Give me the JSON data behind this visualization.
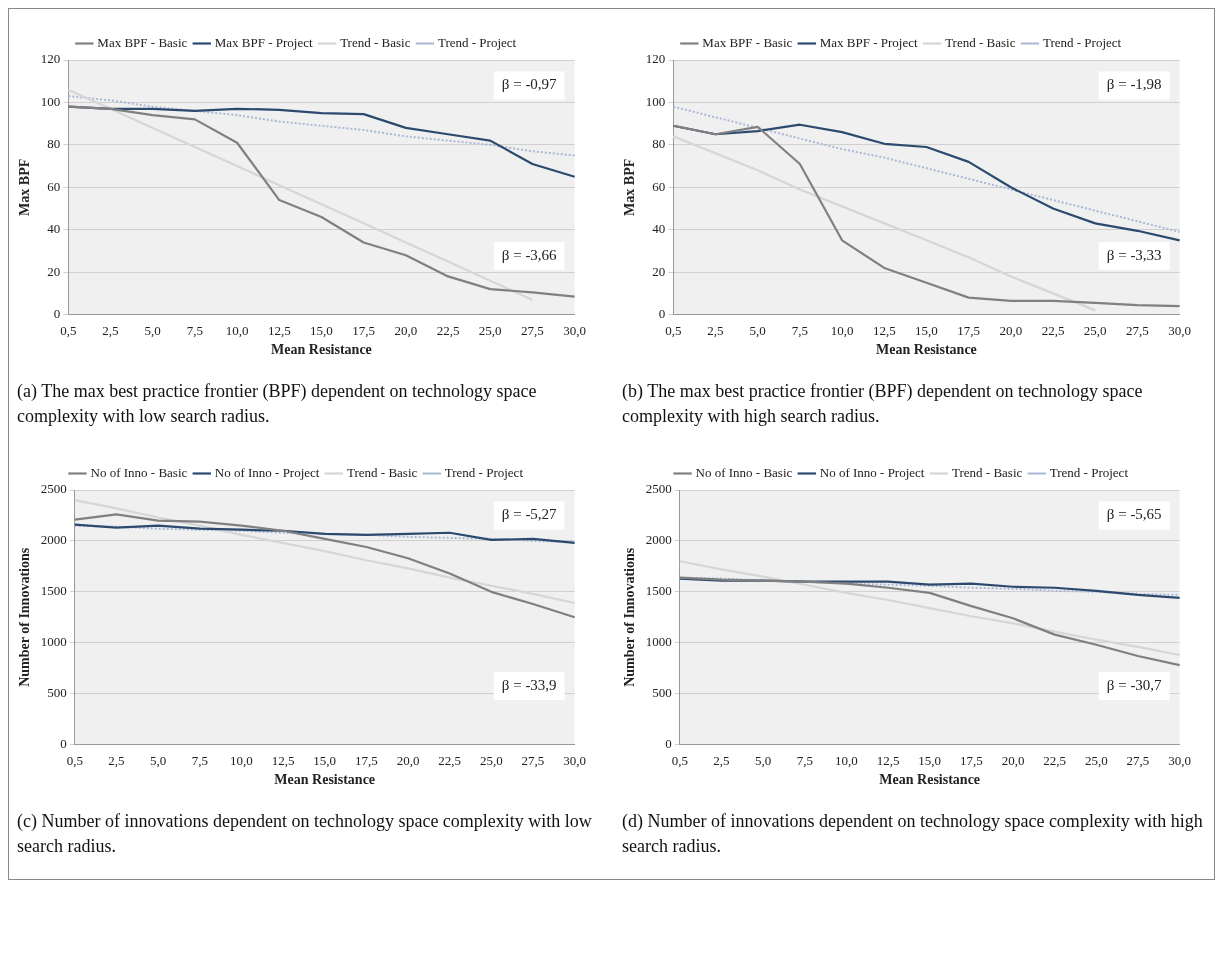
{
  "chart_data": [
    {
      "type": "line",
      "title": "(a) The max best practice frontier (BPF) dependent on technology space complexity with low search radius.",
      "xlabel": "Mean Resistance",
      "ylabel": "Max BPF",
      "categories": [
        "0,5",
        "2,5",
        "5,0",
        "7,5",
        "10,0",
        "12,5",
        "15,0",
        "17,5",
        "20,0",
        "22,5",
        "25,0",
        "27,5",
        "30,0"
      ],
      "ylim": [
        0,
        120
      ],
      "yticks": [
        0,
        20,
        40,
        60,
        80,
        100,
        120
      ],
      "grid": "y",
      "legend": "top",
      "annotations": [
        "β = -0,97",
        "β = -3,66"
      ],
      "series": [
        {
          "name": "Max BPF - Basic",
          "color": "#808080",
          "values": [
            98,
            97,
            94,
            92,
            81,
            54,
            46,
            34,
            28,
            18,
            12,
            10.5,
            8.5
          ]
        },
        {
          "name": "Max BPF - Project",
          "color": "#2c4a6e",
          "values": [
            98,
            97,
            97,
            96,
            97,
            96.5,
            95,
            94.5,
            88,
            85,
            82,
            71,
            65
          ]
        },
        {
          "name": "Trend - Basic",
          "color": "#d6d6d6",
          "values": [
            106,
            97,
            88,
            79,
            70,
            61,
            52,
            43,
            34,
            25,
            16,
            7,
            null
          ]
        },
        {
          "name": "Trend - Project",
          "color": "#a9b8d4",
          "line_style": "dotted",
          "values": [
            103,
            101,
            98,
            96,
            94,
            91,
            89,
            87,
            84,
            82,
            80,
            77,
            75
          ]
        }
      ]
    },
    {
      "type": "line",
      "title": "(b) The max best practice frontier (BPF) dependent on technology space complexity with high search radius.",
      "xlabel": "Mean Resistance",
      "ylabel": "Max BPF",
      "categories": [
        "0,5",
        "2,5",
        "5,0",
        "7,5",
        "10,0",
        "12,5",
        "15,0",
        "17,5",
        "20,0",
        "22,5",
        "25,0",
        "27,5",
        "30,0"
      ],
      "ylim": [
        0,
        120
      ],
      "yticks": [
        0,
        20,
        40,
        60,
        80,
        100,
        120
      ],
      "grid": "y",
      "legend": "top",
      "annotations": [
        "β = -1,98",
        "β = -3,33"
      ],
      "series": [
        {
          "name": "Max BPF - Basic",
          "color": "#808080",
          "values": [
            89,
            85,
            88.5,
            71,
            35,
            22,
            15,
            8,
            6.5,
            6.5,
            5.5,
            4.5,
            4
          ]
        },
        {
          "name": "Max BPF - Project",
          "color": "#2c4a6e",
          "values": [
            89,
            85,
            86.5,
            89.5,
            86,
            80.5,
            79,
            72,
            60,
            50,
            43,
            39.5,
            35
          ]
        },
        {
          "name": "Trend - Basic",
          "color": "#d6d6d6",
          "values": [
            84,
            76,
            68,
            59,
            51,
            43,
            35,
            27,
            18,
            10,
            2,
            null,
            null
          ]
        },
        {
          "name": "Trend - Project",
          "color": "#a9b8d4",
          "line_style": "dotted",
          "values": [
            98,
            93,
            88,
            83,
            78,
            74,
            69,
            64,
            59,
            54,
            49,
            44,
            39
          ]
        }
      ]
    },
    {
      "type": "line",
      "title": "(c) Number of innovations dependent on technology space complexity with low search radius.",
      "xlabel": "Mean Resistance",
      "ylabel": "Number of Innovations",
      "categories": [
        "0,5",
        "2,5",
        "5,0",
        "7,5",
        "10,0",
        "12,5",
        "15,0",
        "17,5",
        "20,0",
        "22,5",
        "25,0",
        "27,5",
        "30,0"
      ],
      "ylim": [
        0,
        2500
      ],
      "yticks": [
        0,
        500,
        1000,
        1500,
        2000,
        2500
      ],
      "grid": "y",
      "legend": "top",
      "annotations": [
        "β = -5,27",
        "β = -33,9"
      ],
      "series": [
        {
          "name": "No of Inno - Basic",
          "color": "#808080",
          "values": [
            2210,
            2260,
            2200,
            2190,
            2150,
            2100,
            2020,
            1940,
            1830,
            1680,
            1500,
            1380,
            1250
          ]
        },
        {
          "name": "No of Inno - Project",
          "color": "#2c4a6e",
          "values": [
            2160,
            2130,
            2150,
            2120,
            2110,
            2100,
            2070,
            2060,
            2070,
            2080,
            2010,
            2020,
            1980
          ]
        },
        {
          "name": "Trend - Basic",
          "color": "#d6d6d6",
          "values": [
            2400,
            2320,
            2230,
            2150,
            2060,
            1980,
            1900,
            1810,
            1730,
            1640,
            1560,
            1480,
            1390
          ]
        },
        {
          "name": "Trend - Project",
          "color": "#a9b8d4",
          "line_style": "dotted",
          "values": [
            2150,
            2140,
            2120,
            2110,
            2100,
            2080,
            2070,
            2060,
            2040,
            2030,
            2020,
            2000,
            1990
          ]
        }
      ]
    },
    {
      "type": "line",
      "title": "(d) Number of innovations dependent on technology space complexity with high search radius.",
      "xlabel": "Mean Resistance",
      "ylabel": "Number of Innovations",
      "categories": [
        "0,5",
        "2,5",
        "5,0",
        "7,5",
        "10,0",
        "12,5",
        "15,0",
        "17,5",
        "20,0",
        "22,5",
        "25,0",
        "27,5",
        "30,0"
      ],
      "ylim": [
        0,
        2500
      ],
      "yticks": [
        0,
        500,
        1000,
        1500,
        2000,
        2500
      ],
      "grid": "y",
      "legend": "top",
      "annotations": [
        "β = -5,65",
        "β = -30,7"
      ],
      "series": [
        {
          "name": "No of Inno - Basic",
          "color": "#808080",
          "values": [
            1640,
            1620,
            1610,
            1600,
            1580,
            1540,
            1490,
            1360,
            1240,
            1080,
            980,
            870,
            780
          ]
        },
        {
          "name": "No of Inno - Project",
          "color": "#2c4a6e",
          "values": [
            1630,
            1610,
            1610,
            1600,
            1600,
            1600,
            1570,
            1580,
            1550,
            1540,
            1510,
            1470,
            1440
          ]
        },
        {
          "name": "Trend - Basic",
          "color": "#d6d6d6",
          "values": [
            1800,
            1720,
            1650,
            1570,
            1490,
            1420,
            1340,
            1260,
            1190,
            1110,
            1030,
            960,
            880
          ]
        },
        {
          "name": "Trend - Project",
          "color": "#a9b8d4",
          "line_style": "dotted",
          "values": [
            1640,
            1630,
            1610,
            1600,
            1580,
            1570,
            1560,
            1540,
            1530,
            1510,
            1500,
            1480,
            1470
          ]
        }
      ]
    }
  ]
}
